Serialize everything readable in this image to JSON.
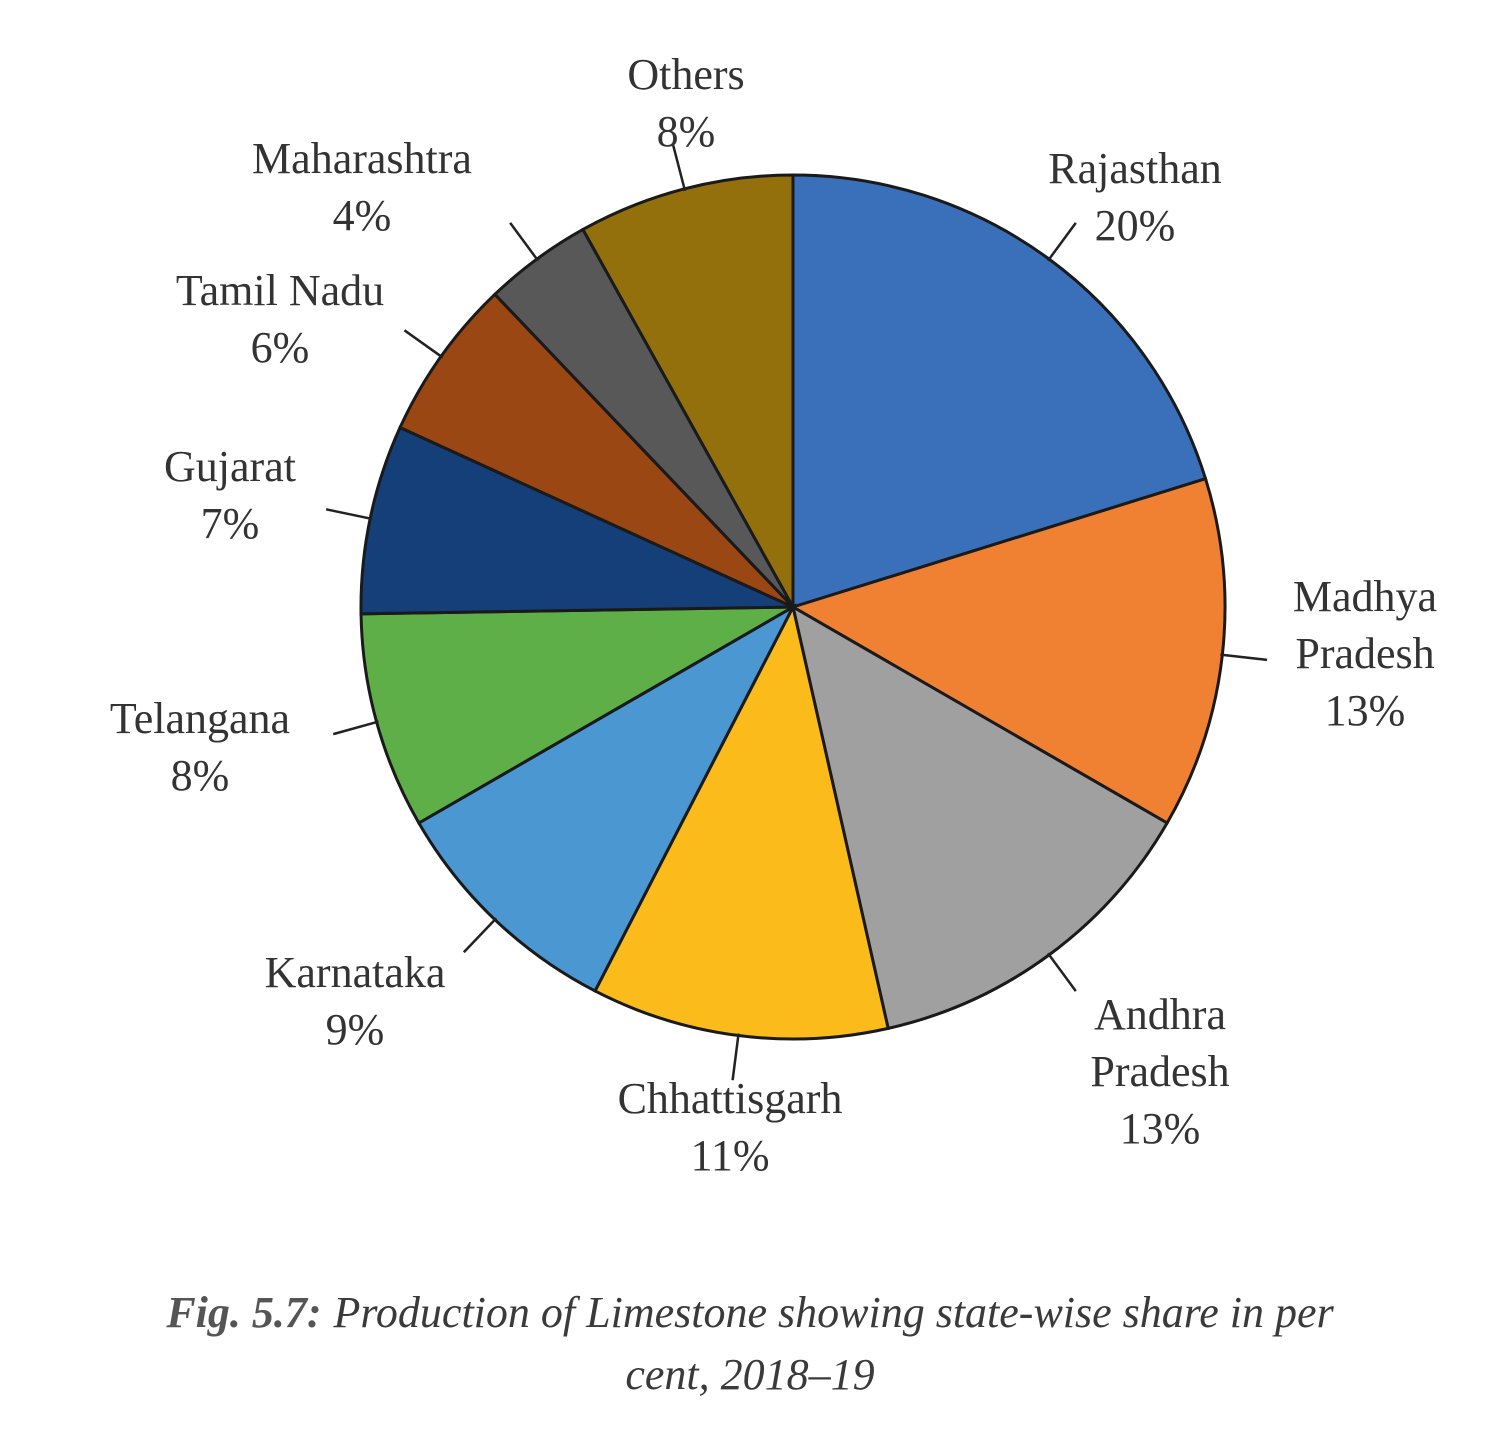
{
  "chart_data": {
    "type": "pie",
    "caption_label": "Fig. 5.7:",
    "title": "Production of Limestone showing state-wise share in per cent, 2018–19",
    "categories": [
      "Rajasthan",
      "Madhya Pradesh",
      "Andhra Pradesh",
      "Chhattisgarh",
      "Karnataka",
      "Telangana",
      "Gujarat",
      "Tamil Nadu",
      "Maharashtra",
      "Others"
    ],
    "values": [
      20,
      13,
      13,
      11,
      9,
      8,
      7,
      6,
      4,
      8
    ],
    "value_labels": [
      "20%",
      "13%",
      "13%",
      "11%",
      "9%",
      "8%",
      "7%",
      "6%",
      "4%",
      "8%"
    ],
    "colors": [
      "#3a70b9",
      "#f08133",
      "#a0a0a0",
      "#fbbb1b",
      "#4a97d2",
      "#5faf48",
      "#143f78",
      "#9a4713",
      "#585858",
      "#93700c"
    ]
  }
}
